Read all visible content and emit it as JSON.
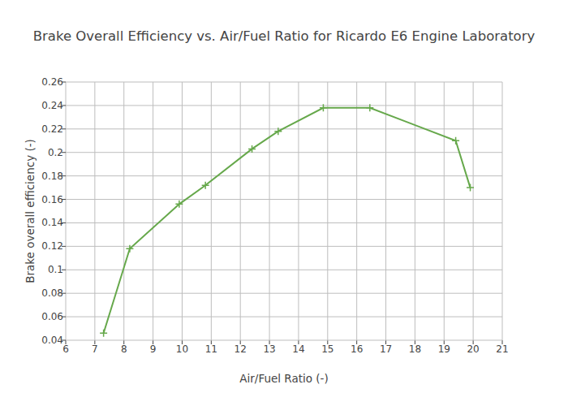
{
  "chart_data": {
    "type": "line",
    "title": "Brake Overall Efficiency vs. Air/Fuel Ratio for Ricardo E6 Engine Laboratory",
    "x_label": "Air/Fuel Ratio (-)",
    "y_label": "Brake overall efficiency (-)",
    "x": [
      7.3,
      8.2,
      9.9,
      10.8,
      12.4,
      13.3,
      14.85,
      16.45,
      19.4,
      19.9
    ],
    "values": [
      0.046,
      0.118,
      0.156,
      0.172,
      0.203,
      0.218,
      0.238,
      0.238,
      0.21,
      0.17
    ],
    "color": "#66a84b",
    "marker": "cross",
    "line_style": "solid",
    "xlim": [
      6,
      21
    ],
    "xticks": [
      6,
      7,
      8,
      9,
      10,
      11,
      12,
      13,
      14,
      15,
      16,
      17,
      18,
      19,
      20,
      21
    ],
    "ylim": [
      0.04,
      0.26
    ],
    "yticks": [
      0.04,
      0.06,
      0.08,
      0.1,
      0.12,
      0.14,
      0.16,
      0.18,
      0.2,
      0.22,
      0.24,
      0.26
    ],
    "grid": true
  }
}
